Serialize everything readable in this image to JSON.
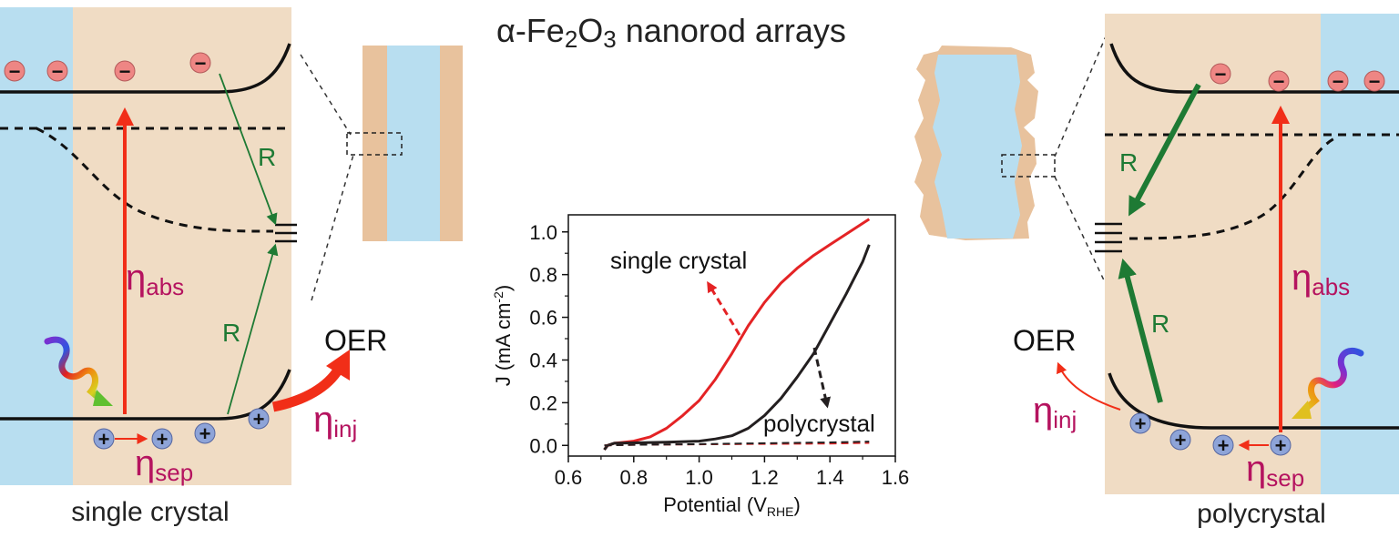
{
  "title_parts": {
    "prefix": "α-Fe",
    "sub1": "2",
    "mid": "O",
    "sub2": "3",
    "suffix": " nanorod arrays"
  },
  "left_panel": {
    "caption": "single crystal",
    "eta_abs": {
      "symbol": "η",
      "sub": "abs"
    },
    "eta_sep": {
      "symbol": "η",
      "sub": "sep"
    },
    "eta_inj": {
      "symbol": "η",
      "sub": "inj"
    },
    "recomb_upper": "R",
    "recomb_lower": "R",
    "oer": "OER",
    "electron_sign": "−",
    "hole_sign": "+"
  },
  "right_panel": {
    "caption": "polycrystal",
    "eta_abs": {
      "symbol": "η",
      "sub": "abs"
    },
    "eta_sep": {
      "symbol": "η",
      "sub": "sep"
    },
    "eta_inj": {
      "symbol": "η",
      "sub": "inj"
    },
    "recomb_upper": "R",
    "recomb_lower": "R",
    "oer": "OER",
    "electron_sign": "−",
    "hole_sign": "+"
  },
  "colors": {
    "electrolyte": "#b8def0",
    "semiconductor": "#f0dcc4",
    "rod_edge": "#e8c29d",
    "electron": "#ee8684",
    "hole": "#8ea4d8",
    "excitation_arrow": "#f12e18",
    "recomb_arrow": "#1e7a34",
    "eta_text": "#b5135f",
    "single_crystal_curve": "#e42325",
    "polycrystal_curve": "#231f20"
  },
  "chart_data": {
    "type": "line",
    "xlabel_main": "Potential (V",
    "xlabel_sub": "RHE",
    "xlabel_end": ")",
    "ylabel_main": "J (mA cm",
    "ylabel_sup": "-2",
    "ylabel_end": ")",
    "xlim": [
      0.6,
      1.6
    ],
    "ylim": [
      -0.05,
      1.08
    ],
    "xticks": [
      0.6,
      0.8,
      1.0,
      1.2,
      1.4,
      1.6
    ],
    "xtick_labels": [
      "0.6",
      "0.8",
      "1.0",
      "1.2",
      "1.4",
      "1.6"
    ],
    "yticks": [
      0.0,
      0.2,
      0.4,
      0.6,
      0.8,
      1.0
    ],
    "ytick_labels": [
      "0.0",
      "0.2",
      "0.4",
      "0.6",
      "0.8",
      "1.0"
    ],
    "annotations": [
      "single crystal",
      "polycrystal"
    ],
    "series": [
      {
        "name": "single crystal",
        "style": "solid",
        "color": "#e42325",
        "x": [
          0.71,
          0.72,
          0.74,
          0.76,
          0.8,
          0.85,
          0.9,
          0.95,
          1.0,
          1.05,
          1.1,
          1.15,
          1.2,
          1.25,
          1.3,
          1.35,
          1.4,
          1.45,
          1.5,
          1.52
        ],
        "y": [
          -0.02,
          0.0,
          0.01,
          0.013,
          0.02,
          0.04,
          0.08,
          0.14,
          0.21,
          0.31,
          0.43,
          0.56,
          0.67,
          0.76,
          0.83,
          0.89,
          0.94,
          0.99,
          1.04,
          1.06
        ]
      },
      {
        "name": "polycrystal",
        "style": "solid",
        "color": "#231f20",
        "x": [
          0.71,
          0.72,
          0.74,
          0.8,
          0.9,
          1.0,
          1.05,
          1.1,
          1.15,
          1.2,
          1.25,
          1.3,
          1.35,
          1.4,
          1.45,
          1.5,
          1.52
        ],
        "y": [
          -0.02,
          0.0,
          0.01,
          0.012,
          0.015,
          0.02,
          0.03,
          0.045,
          0.08,
          0.14,
          0.22,
          0.32,
          0.43,
          0.57,
          0.71,
          0.86,
          0.94
        ]
      },
      {
        "name": "single crystal dark",
        "style": "dashed",
        "color": "#e42325",
        "x": [
          0.71,
          0.8,
          1.0,
          1.2,
          1.4,
          1.52
        ],
        "y": [
          0.0,
          0.003,
          0.005,
          0.007,
          0.009,
          0.012
        ]
      },
      {
        "name": "polycrystal dark",
        "style": "dashed",
        "color": "#231f20",
        "x": [
          0.71,
          0.8,
          1.0,
          1.2,
          1.4,
          1.52
        ],
        "y": [
          0.0,
          0.003,
          0.006,
          0.01,
          0.014,
          0.018
        ]
      }
    ]
  }
}
